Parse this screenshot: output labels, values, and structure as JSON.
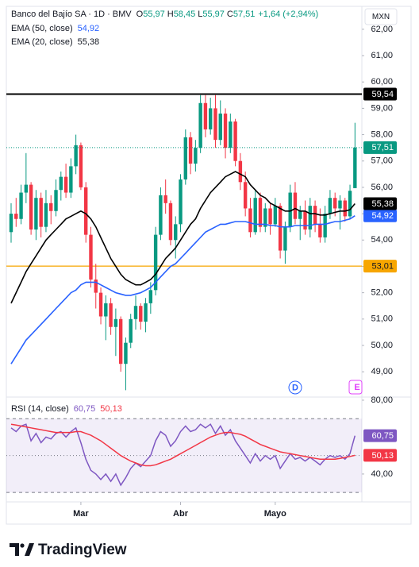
{
  "currency": "MXN",
  "brand": "TradingView",
  "chart_data": [
    {
      "type": "candlestick",
      "title": "Banco del Bajío SA · 1D · BMV",
      "ohlc_readout": [
        {
          "key": "O",
          "text": "55,97"
        },
        {
          "key": "H",
          "text": "58,45"
        },
        {
          "key": "L",
          "text": "55,97"
        },
        {
          "key": "C",
          "text": "57,51"
        }
      ],
      "change": "+1,64 (+2,94%)",
      "up_color": "#089981",
      "down_color": "#f23645",
      "open": [
        54.3,
        55.0,
        54.8,
        55.8,
        56.1,
        54.4,
        55.6,
        54.5,
        55.4,
        55.1,
        55.9,
        56.4,
        55.8,
        56.8,
        57.6,
        56.0,
        54.2,
        52.5,
        52.0,
        51.1,
        51.6,
        50.7,
        51.0,
        49.3,
        50.1,
        51.0,
        51.5,
        50.9,
        51.6,
        52.1,
        54.2,
        55.7,
        55.4,
        54.0,
        54.6,
        56.3,
        57.9,
        56.9,
        57.5,
        59.2,
        58.2,
        59.0,
        57.8,
        58.8,
        57.5,
        58.5,
        57.0,
        56.2,
        55.2,
        54.3,
        55.6,
        54.5,
        55.2,
        54.6,
        55.3,
        53.6,
        54.5,
        55.8,
        54.8,
        55.1,
        54.4,
        55.3,
        54.6,
        54.1,
        55.0,
        55.6,
        55.2,
        55.5,
        54.9,
        55.97
      ],
      "high": [
        55.4,
        55.6,
        56.1,
        57.3,
        56.2,
        55.9,
        55.8,
        55.9,
        55.7,
        56.3,
        56.6,
        56.9,
        57.1,
        58.0,
        57.7,
        56.2,
        54.5,
        53.1,
        52.2,
        51.9,
        51.8,
        51.4,
        51.1,
        50.3,
        51.2,
        51.9,
        51.6,
        51.8,
        52.4,
        54.5,
        56.0,
        56.3,
        55.5,
        54.9,
        56.5,
        58.2,
        58.1,
        57.8,
        59.5,
        59.5,
        59.4,
        59.5,
        59.3,
        59.0,
        58.8,
        58.6,
        57.3,
        56.6,
        55.6,
        55.9,
        55.8,
        55.4,
        55.4,
        55.6,
        55.4,
        54.7,
        56.1,
        56.2,
        55.3,
        55.5,
        55.6,
        55.5,
        55.2,
        55.3,
        55.9,
        55.8,
        55.7,
        55.6,
        56.1,
        58.45
      ],
      "low": [
        53.9,
        54.5,
        54.6,
        55.4,
        54.2,
        54.0,
        54.1,
        54.3,
        54.6,
        54.9,
        55.5,
        55.6,
        55.6,
        56.5,
        55.9,
        53.9,
        52.2,
        51.4,
        50.8,
        50.2,
        50.4,
        49.6,
        49.0,
        48.3,
        49.9,
        50.6,
        50.6,
        50.5,
        51.2,
        51.9,
        54.0,
        55.0,
        53.8,
        53.3,
        54.3,
        56.1,
        56.5,
        56.6,
        57.3,
        57.9,
        58.0,
        57.5,
        57.6,
        57.1,
        57.3,
        56.8,
        55.9,
        54.9,
        54.1,
        54.2,
        54.3,
        54.3,
        54.2,
        54.5,
        53.3,
        53.1,
        54.3,
        54.6,
        54.0,
        54.2,
        54.1,
        54.3,
        53.9,
        53.9,
        54.8,
        54.9,
        54.4,
        54.7,
        54.8,
        55.97
      ],
      "close": [
        55.0,
        54.8,
        55.8,
        56.1,
        54.4,
        55.6,
        54.5,
        55.4,
        55.1,
        55.9,
        56.4,
        55.8,
        56.8,
        57.6,
        56.0,
        54.2,
        52.5,
        52.0,
        51.1,
        51.6,
        50.7,
        51.0,
        49.3,
        50.1,
        51.0,
        51.5,
        50.9,
        51.6,
        52.1,
        54.2,
        55.7,
        55.4,
        54.0,
        54.6,
        56.3,
        57.9,
        56.9,
        57.5,
        59.2,
        58.2,
        59.0,
        57.8,
        58.8,
        57.5,
        58.5,
        57.0,
        56.2,
        55.2,
        54.3,
        55.6,
        54.5,
        55.2,
        54.6,
        55.3,
        53.6,
        54.5,
        55.8,
        54.8,
        55.1,
        54.4,
        55.3,
        54.6,
        54.1,
        55.0,
        55.6,
        55.2,
        55.5,
        54.9,
        55.87,
        57.51
      ],
      "last_label": "57,51",
      "series": [
        {
          "name": "EMA (50, close)",
          "color": "#2962ff",
          "last_label": "54,92",
          "values": [
            49.3,
            49.6,
            49.9,
            50.2,
            50.4,
            50.6,
            50.8,
            51.0,
            51.2,
            51.4,
            51.6,
            51.8,
            52.0,
            52.1,
            52.3,
            52.4,
            52.4,
            52.4,
            52.3,
            52.2,
            52.1,
            52.0,
            51.95,
            51.9,
            51.9,
            51.95,
            52.0,
            52.1,
            52.2,
            52.4,
            52.6,
            52.8,
            53.0,
            53.1,
            53.3,
            53.5,
            53.7,
            53.9,
            54.1,
            54.3,
            54.4,
            54.5,
            54.6,
            54.6,
            54.65,
            54.7,
            54.7,
            54.7,
            54.65,
            54.6,
            54.6,
            54.6,
            54.55,
            54.55,
            54.5,
            54.5,
            54.5,
            54.55,
            54.55,
            54.55,
            54.55,
            54.6,
            54.6,
            54.6,
            54.65,
            54.7,
            54.7,
            54.75,
            54.8,
            54.92
          ]
        },
        {
          "name": "EMA (20, close)",
          "color": "#000000",
          "last_label": "55,38",
          "values": [
            51.6,
            52.0,
            52.4,
            52.8,
            53.1,
            53.4,
            53.7,
            54.0,
            54.2,
            54.4,
            54.6,
            54.8,
            54.9,
            55.0,
            55.1,
            55.0,
            54.8,
            54.5,
            54.1,
            53.7,
            53.3,
            53.0,
            52.7,
            52.5,
            52.4,
            52.3,
            52.3,
            52.4,
            52.5,
            52.7,
            53.0,
            53.3,
            53.5,
            53.7,
            54.0,
            54.3,
            54.6,
            54.8,
            55.2,
            55.5,
            55.8,
            56.0,
            56.2,
            56.4,
            56.5,
            56.6,
            56.5,
            56.4,
            56.1,
            55.9,
            55.7,
            55.6,
            55.4,
            55.3,
            55.2,
            55.1,
            55.1,
            55.2,
            55.1,
            55.1,
            55.0,
            55.0,
            54.95,
            54.95,
            55.0,
            55.05,
            55.1,
            55.1,
            55.15,
            55.38
          ]
        }
      ],
      "hlines": [
        {
          "value": 59.54,
          "label": "59,54",
          "color": "#000000"
        },
        {
          "value": 53.01,
          "label": "53,01",
          "color": "#f7a600"
        }
      ],
      "events": [
        "D",
        "E"
      ],
      "ylim": [
        48.04,
        62.87
      ],
      "yticks": [
        {
          "value": 49,
          "label": "49,00"
        },
        {
          "value": 50,
          "label": "50,00"
        },
        {
          "value": 51,
          "label": "51,00"
        },
        {
          "value": 52,
          "label": "52,00"
        },
        {
          "value": 53,
          "label": "53,00"
        },
        {
          "value": 54,
          "label": "54,00"
        },
        {
          "value": 55,
          "label": "55,00"
        },
        {
          "value": 56,
          "label": "56,00"
        },
        {
          "value": 57,
          "label": "57,00"
        },
        {
          "value": 58,
          "label": "58,00"
        },
        {
          "value": 59,
          "label": "59,00"
        },
        {
          "value": 60,
          "label": "60,00"
        },
        {
          "value": 61,
          "label": "61,00"
        },
        {
          "value": 62,
          "label": "62,00"
        }
      ]
    },
    {
      "type": "line",
      "title": "RSI (14, close)",
      "series": [
        {
          "name": "RSI",
          "color": "#7e57c2",
          "last_label": "60,75",
          "values": [
            65,
            63,
            66,
            67,
            58,
            62,
            57,
            60,
            59,
            62,
            63,
            60,
            63,
            65,
            57,
            48,
            42,
            40,
            37,
            40,
            36,
            40,
            34,
            38,
            43,
            46,
            44,
            47,
            50,
            58,
            63,
            61,
            55,
            58,
            63,
            66,
            63,
            64,
            67,
            65,
            67,
            62,
            66,
            61,
            64,
            58,
            54,
            50,
            46,
            51,
            47,
            50,
            48,
            50,
            43,
            47,
            51,
            48,
            49,
            47,
            49,
            47,
            45,
            48,
            50,
            49,
            50,
            48,
            51,
            60.75
          ]
        },
        {
          "name": "RSI MA",
          "color": "#f23645",
          "last_label": "50,13",
          "values": [
            67,
            66.5,
            66,
            65.5,
            65,
            64.5,
            64,
            63.5,
            63,
            62.5,
            62.5,
            62.5,
            62.5,
            63,
            63,
            62,
            61,
            59.5,
            58,
            56,
            54,
            52,
            50,
            48.5,
            47,
            46,
            45,
            44.5,
            44.5,
            45,
            46,
            47,
            48,
            49.5,
            51,
            52.5,
            54,
            55.5,
            57,
            58.5,
            60,
            61,
            62,
            62.5,
            62.5,
            62,
            61.5,
            60.5,
            59,
            57.5,
            56,
            55,
            54,
            53,
            52,
            51.5,
            51,
            50.5,
            50,
            49.5,
            49,
            48.5,
            48,
            48,
            48,
            48,
            48.5,
            49,
            49.5,
            50.13
          ]
        }
      ],
      "bands": {
        "lower": 30,
        "middle": 50,
        "upper": 70
      },
      "ylim": [
        24.9,
        81.7
      ],
      "yticks": [
        {
          "value": 40,
          "label": "40,00"
        },
        {
          "value": 80,
          "label": "80,00"
        }
      ],
      "xticks": [
        {
          "value": 14,
          "label": "Mar"
        },
        {
          "value": 34,
          "label": "Abr"
        },
        {
          "value": 53,
          "label": "Mayo"
        }
      ]
    }
  ]
}
